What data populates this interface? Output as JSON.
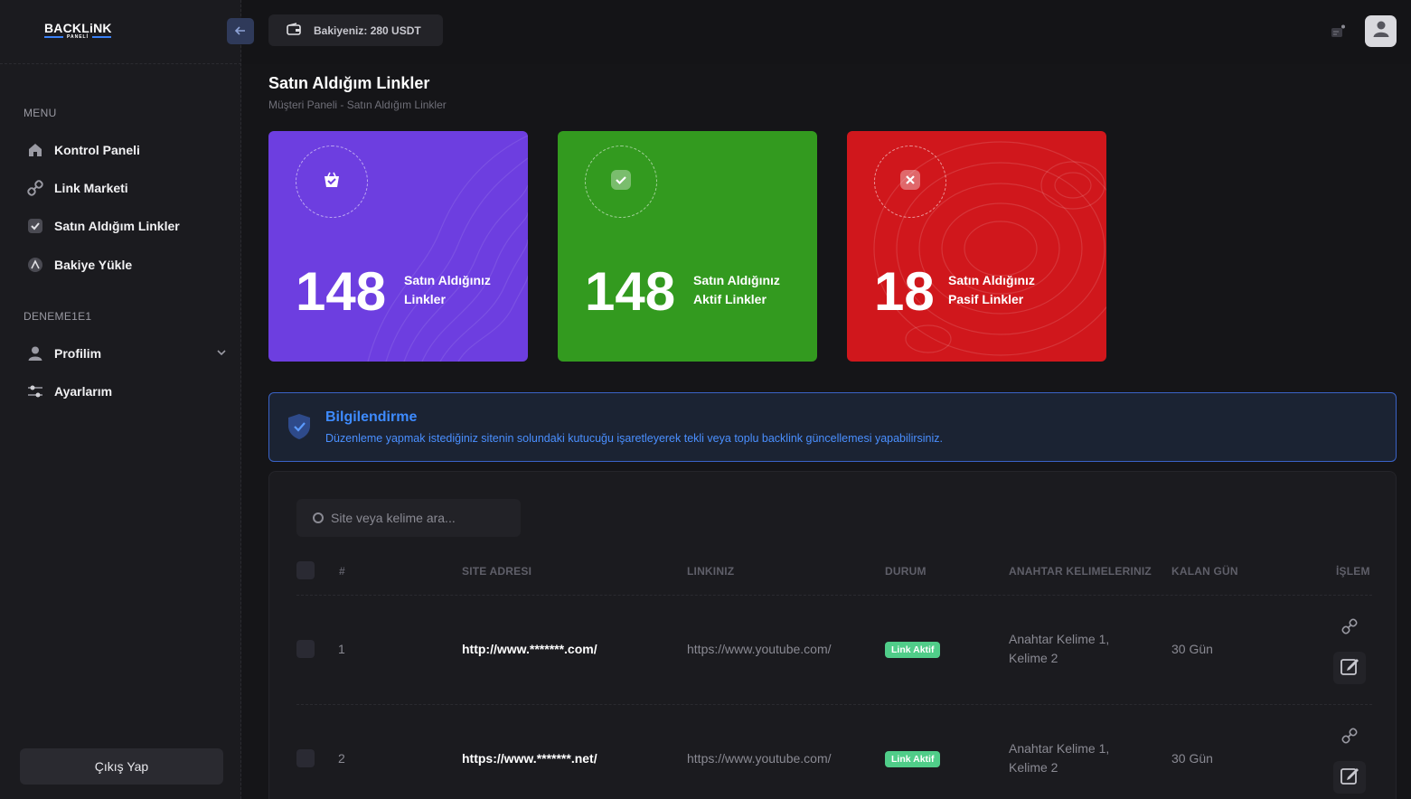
{
  "brand": {
    "name": "BACKLiNK",
    "sub": "PANELİ"
  },
  "topbar": {
    "balance_label": "Bakiyeniz: 280 USDT"
  },
  "sidebar": {
    "menu_heading": "MENU",
    "items": [
      {
        "label": "Kontrol Paneli",
        "icon": "home-icon"
      },
      {
        "label": "Link Marketi",
        "icon": "link-icon"
      },
      {
        "label": "Satın Aldığım Linkler",
        "icon": "check-icon"
      },
      {
        "label": "Bakiye Yükle",
        "icon": "wallet-icon"
      }
    ],
    "user_heading": "DENEME1E1",
    "user_items": [
      {
        "label": "Profilim",
        "icon": "user-icon"
      },
      {
        "label": "Ayarlarım",
        "icon": "settings-icon"
      }
    ],
    "logout_label": "Çıkış Yap"
  },
  "page": {
    "title": "Satın Aldığım Linkler",
    "breadcrumb": "Müşteri Paneli  -  Satın Aldığım Linkler"
  },
  "stats": [
    {
      "value": "148",
      "line1": "Satın Aldığınız",
      "line2": "Linkler",
      "color": "#6d3ee0",
      "icon": "basket-icon"
    },
    {
      "value": "148",
      "line1": "Satın Aldığınız",
      "line2": "Aktif Linkler",
      "color": "#339a1f",
      "icon": "check-icon"
    },
    {
      "value": "18",
      "line1": "Satın Aldığınız",
      "line2": "Pasif Linkler",
      "color": "#d0171c",
      "icon": "close-icon"
    }
  ],
  "info": {
    "title": "Bilgilendirme",
    "desc": "Düzenleme yapmak istediğiniz sitenin solundaki kutucuğu işaretleyerek tekli veya toplu backlink güncellemesi yapabilirsiniz."
  },
  "table": {
    "search_placeholder": "Site veya kelime ara...",
    "headers": [
      "#",
      "SITE ADRESI",
      "LINKINIZ",
      "DURUM",
      "ANAHTAR KELIMELERINIZ",
      "KALAN GÜN",
      "İŞLEM"
    ],
    "rows": [
      {
        "num": "1",
        "site": "http://www.*******.com/",
        "link": "https://www.youtube.com/",
        "status": "Link Aktif",
        "kw1": "Anahtar Kelime 1,",
        "kw2": "Kelime 2",
        "days": "30 Gün"
      },
      {
        "num": "2",
        "site": "https://www.*******.net/",
        "link": "https://www.youtube.com/",
        "status": "Link Aktif",
        "kw1": "Anahtar Kelime 1,",
        "kw2": "Kelime 2",
        "days": "30 Gün"
      }
    ]
  }
}
